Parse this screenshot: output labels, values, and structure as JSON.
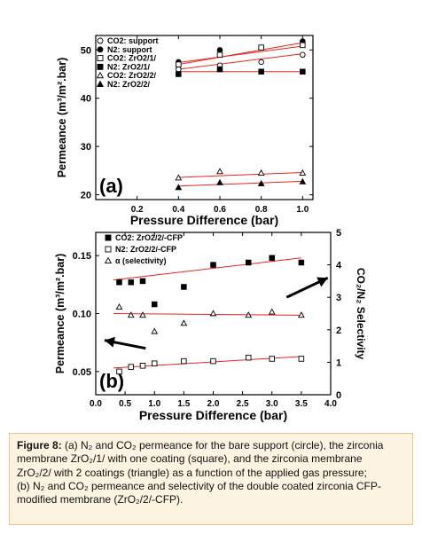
{
  "chart_data": [
    {
      "type": "scatter",
      "panel_label": "(a)",
      "xlabel": "Pressure Difference (bar)",
      "ylabel": "Permeance (m³/m².bar)",
      "xlim": [
        0.0,
        1.05
      ],
      "ylim": [
        19,
        53
      ],
      "x_ticks": [
        "0.2",
        "0.4",
        "0.6",
        "0.8",
        "1.0"
      ],
      "y_ticks": [
        "20",
        "30",
        "40",
        "50"
      ],
      "legend_position": "top-left",
      "series": [
        {
          "name": "CO2: support",
          "marker": "open-circle",
          "x": [
            0.4,
            0.6,
            0.8,
            1.0
          ],
          "y": [
            46.0,
            46.8,
            47.5,
            49.0
          ],
          "fit": [
            [
              0.4,
              46.0
            ],
            [
              1.0,
              49.2
            ]
          ]
        },
        {
          "name": "N2: support",
          "marker": "filled-circle",
          "x": [
            0.4,
            0.6,
            0.8,
            1.0
          ],
          "y": [
            47.5,
            50.0,
            50.5,
            51.8
          ],
          "fit": [
            [
              0.4,
              47.0
            ],
            [
              1.0,
              51.5
            ]
          ]
        },
        {
          "name": "CO2: ZrO2/1/",
          "marker": "open-square",
          "x": [
            0.4,
            0.6,
            0.8,
            1.0
          ],
          "y": [
            47.0,
            49.0,
            50.5,
            51.0
          ],
          "fit": [
            [
              0.4,
              47.4
            ],
            [
              1.0,
              50.8
            ]
          ]
        },
        {
          "name": "N2: ZrO2/1/",
          "marker": "filled-square",
          "x": [
            0.4,
            0.6,
            0.8,
            1.0
          ],
          "y": [
            45.0,
            46.0,
            45.5,
            45.5
          ],
          "fit": [
            [
              0.4,
              45.5
            ],
            [
              1.0,
              45.5
            ]
          ]
        },
        {
          "name": "CO2: ZrO2/2/",
          "marker": "open-triangle",
          "x": [
            0.4,
            0.6,
            0.8,
            1.0
          ],
          "y": [
            23.5,
            24.8,
            24.5,
            24.5
          ],
          "fit": [
            [
              0.4,
              23.6
            ],
            [
              1.0,
              24.6
            ]
          ]
        },
        {
          "name": "N2: ZrO2/2/",
          "marker": "filled-triangle",
          "x": [
            0.4,
            0.6,
            0.8,
            1.0
          ],
          "y": [
            21.5,
            22.5,
            22.3,
            22.7
          ],
          "fit": [
            [
              0.4,
              21.8
            ],
            [
              1.0,
              22.8
            ]
          ]
        }
      ]
    },
    {
      "type": "scatter",
      "panel_label": "(b)",
      "xlabel": "Pressure Difference (bar)",
      "ylabel": "Permeance (m³/m².bar)",
      "y2label": "CO₂/N₂ Selectivity",
      "xlim": [
        0.0,
        4.0
      ],
      "ylim": [
        0.03,
        0.17
      ],
      "y2lim": [
        0,
        5
      ],
      "x_ticks": [
        "0.0",
        "0.5",
        "1.0",
        "1.5",
        "2.0",
        "2.5",
        "3.0",
        "3.5",
        "4.0"
      ],
      "y_ticks": [
        "0.05",
        "0.10",
        "0.15"
      ],
      "y2_ticks": [
        "0",
        "1",
        "2",
        "3",
        "4",
        "5"
      ],
      "legend_position": "top-left",
      "series": [
        {
          "name": "CO2: ZrO2/2/-CFP",
          "marker": "filled-square",
          "axis": "left",
          "x": [
            0.4,
            0.6,
            0.8,
            1.0,
            1.5,
            2.0,
            2.6,
            3.0,
            3.5
          ],
          "y": [
            0.127,
            0.127,
            0.128,
            0.108,
            0.123,
            0.142,
            0.144,
            0.148,
            0.144
          ],
          "fit": [
            [
              0.3,
              0.129
            ],
            [
              3.5,
              0.148
            ]
          ]
        },
        {
          "name": "N2: ZrO2/2/-CFP",
          "marker": "open-square",
          "axis": "left",
          "x": [
            0.4,
            0.6,
            0.8,
            1.0,
            1.5,
            2.0,
            2.6,
            3.0,
            3.5
          ],
          "y": [
            0.05,
            0.054,
            0.055,
            0.057,
            0.059,
            0.059,
            0.062,
            0.061,
            0.061
          ],
          "fit": [
            [
              0.3,
              0.053
            ],
            [
              3.5,
              0.063
            ]
          ]
        },
        {
          "name": "α (selectivity)",
          "marker": "open-triangle",
          "axis": "right",
          "x": [
            0.4,
            0.6,
            0.8,
            1.0,
            1.5,
            2.0,
            2.6,
            3.0,
            3.5
          ],
          "y": [
            2.7,
            2.45,
            2.45,
            1.95,
            2.2,
            2.5,
            2.45,
            2.55,
            2.45
          ],
          "fit": [
            [
              0.3,
              2.5
            ],
            [
              3.5,
              2.45
            ]
          ]
        }
      ]
    }
  ],
  "caption": {
    "label": "Figure 8:",
    "lines": [
      " (a) N₂ and CO₂ permeance for the bare support (circle), the zirconia",
      "membrane ZrO₂/1/ with one coating (square), and the zirconia membrane",
      "ZrO₂/2/ with 2 coatings (triangle) as a function of the applied gas pressure;",
      "(b) N₂ and CO₂ permeance and selectivity of the double coated zirconia CFP-",
      "modified membrane (ZrO₂/2/-CFP)."
    ]
  }
}
